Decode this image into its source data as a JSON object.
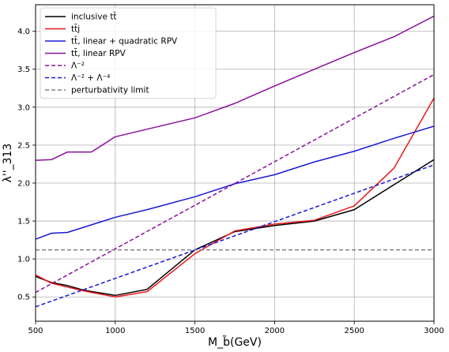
{
  "chart_data": {
    "type": "line",
    "xlabel": "M_b̃(GeV)",
    "ylabel": "λ''_313",
    "xlim": [
      500,
      3000
    ],
    "ylim": [
      0.18,
      4.35
    ],
    "x_ticks": [
      500,
      1000,
      1500,
      2000,
      2500,
      3000
    ],
    "x_tick_labels": [
      "500",
      "1000",
      "1500",
      "2000",
      "2500",
      "3000"
    ],
    "y_ticks": [
      0.5,
      1.0,
      1.5,
      2.0,
      2.5,
      3.0,
      3.5,
      4.0
    ],
    "y_tick_labels": [
      "0.5",
      "1.0",
      "1.5",
      "2.0",
      "2.5",
      "3.0",
      "3.5",
      "4.0"
    ],
    "grid": true,
    "legend_position": "top-left",
    "series": [
      {
        "name": "inclusive tt̄",
        "color": "#000000",
        "dash": "solid",
        "x": [
          500,
          600,
          700,
          800,
          1000,
          1200,
          1500,
          1750,
          2000,
          2250,
          2500,
          2750,
          3000
        ],
        "y": [
          0.77,
          0.69,
          0.65,
          0.59,
          0.52,
          0.6,
          1.12,
          1.36,
          1.44,
          1.5,
          1.65,
          1.98,
          2.31
        ]
      },
      {
        "name": "tt̄j",
        "color": "#e8161b",
        "dash": "solid",
        "x": [
          500,
          600,
          700,
          800,
          1000,
          1200,
          1500,
          1750,
          2000,
          2250,
          2500,
          2750,
          3000
        ],
        "y": [
          0.79,
          0.68,
          0.63,
          0.58,
          0.5,
          0.57,
          1.07,
          1.37,
          1.46,
          1.51,
          1.7,
          2.2,
          3.12
        ]
      },
      {
        "name": "tt̄, linear + quadratic RPV",
        "color": "#1a1ad6",
        "dash": "solid",
        "x": [
          500,
          600,
          700,
          850,
          1000,
          1200,
          1500,
          1750,
          2000,
          2250,
          2500,
          2750,
          3000
        ],
        "y": [
          1.26,
          1.34,
          1.35,
          1.45,
          1.55,
          1.65,
          1.82,
          1.99,
          2.11,
          2.28,
          2.42,
          2.59,
          2.75
        ]
      },
      {
        "name": "tt̄, linear RPV",
        "color": "#8a0f9c",
        "dash": "solid",
        "x": [
          500,
          600,
          700,
          850,
          1000,
          1200,
          1500,
          1750,
          2000,
          2250,
          2500,
          2750,
          3000
        ],
        "y": [
          2.3,
          2.31,
          2.41,
          2.41,
          2.61,
          2.71,
          2.86,
          3.05,
          3.28,
          3.5,
          3.72,
          3.93,
          4.2
        ]
      },
      {
        "name": "Λ⁻²",
        "color": "#8a0f9c",
        "dash": "dashed",
        "x": [
          500,
          3000
        ],
        "y": [
          0.56,
          3.43
        ]
      },
      {
        "name": "Λ⁻² + Λ⁻⁴",
        "color": "#1a1ad6",
        "dash": "dashed",
        "x": [
          500,
          3000
        ],
        "y": [
          0.37,
          2.24
        ]
      },
      {
        "name": "perturbativity limit",
        "color": "#808080",
        "dash": "dashed",
        "x": [
          500,
          3000
        ],
        "y": [
          1.12,
          1.12
        ]
      }
    ]
  }
}
